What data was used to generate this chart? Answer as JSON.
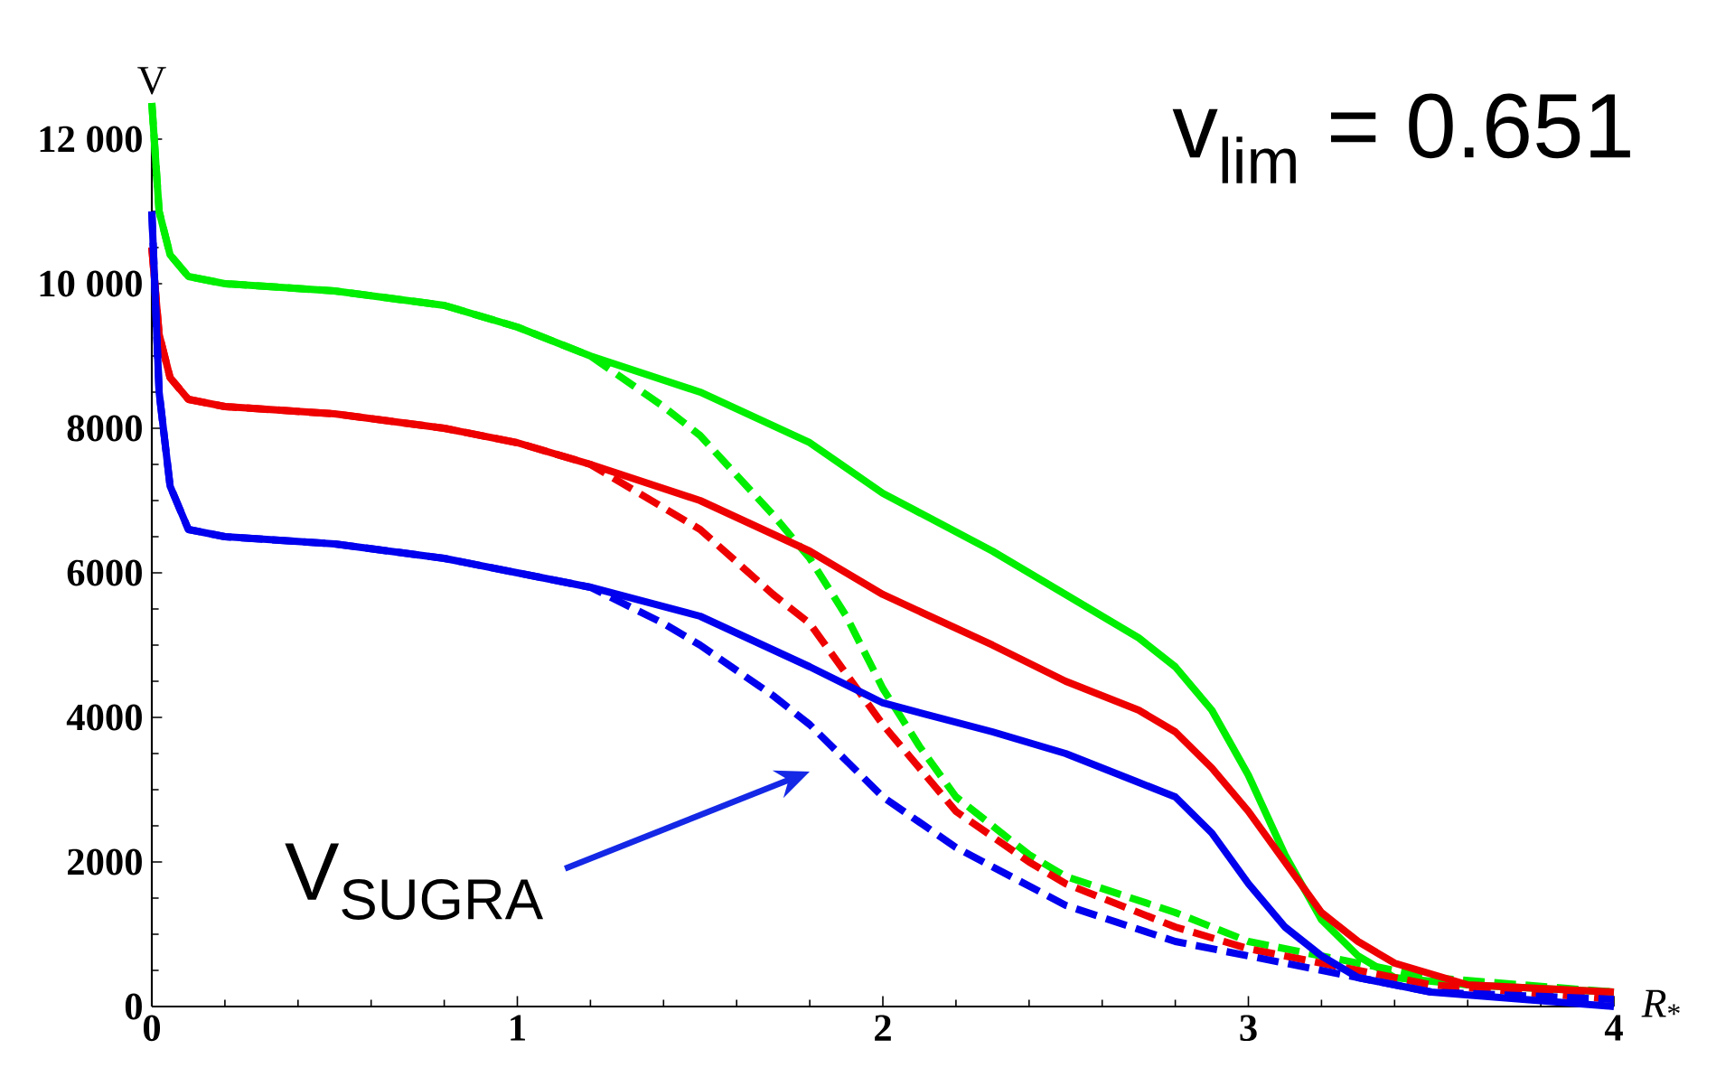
{
  "chart_data": {
    "type": "line",
    "xlabel": "*R*$_{*}$",
    "ylabel": "V",
    "xlim": [
      0,
      4
    ],
    "ylim": [
      0,
      12500
    ],
    "xticks": [
      0,
      1,
      2,
      3,
      4
    ],
    "yticks": [
      0,
      2000,
      4000,
      6000,
      8000,
      {
        "value": 10000,
        "label": "10 000"
      },
      {
        "value": 12000,
        "label": "12 000"
      }
    ],
    "grid": false,
    "marker": "none",
    "series": [
      {
        "color": "#00ee00",
        "line_style": "solid",
        "x": [
          0,
          0.02,
          0.05,
          0.1,
          0.2,
          0.5,
          0.8,
          1,
          1.2,
          1.5,
          1.8,
          2,
          2.3,
          2.5,
          2.7,
          2.8,
          2.9,
          3,
          3.1,
          3.2,
          3.3,
          3.4,
          3.6,
          4
        ],
        "values": [
          12500,
          11000,
          10400,
          10100,
          10000,
          9900,
          9700,
          9400,
          9000,
          8500,
          7800,
          7100,
          6300,
          5700,
          5100,
          4700,
          4100,
          3200,
          2100,
          1200,
          700,
          400,
          300,
          200
        ]
      },
      {
        "color": "#00ee00",
        "line_style": "dashed",
        "x": [
          0,
          0.02,
          0.05,
          0.1,
          0.2,
          0.5,
          0.8,
          1,
          1.2,
          1.4,
          1.5,
          1.7,
          1.8,
          1.9,
          2,
          2.1,
          2.2,
          2.4,
          2.5,
          2.8,
          3,
          3.5,
          4
        ],
        "values": [
          12500,
          11000,
          10400,
          10100,
          10000,
          9900,
          9700,
          9400,
          9000,
          8300,
          7900,
          6800,
          6200,
          5400,
          4400,
          3600,
          2900,
          2100,
          1800,
          1300,
          900,
          400,
          200
        ]
      },
      {
        "color": "#ee0000",
        "line_style": "solid",
        "x": [
          0,
          0.02,
          0.05,
          0.1,
          0.2,
          0.5,
          0.8,
          1,
          1.2,
          1.5,
          1.8,
          2,
          2.3,
          2.5,
          2.7,
          2.8,
          2.9,
          3,
          3.1,
          3.2,
          3.3,
          3.4,
          3.6,
          4
        ],
        "values": [
          10500,
          9300,
          8700,
          8400,
          8300,
          8200,
          8000,
          7800,
          7500,
          7000,
          6300,
          5700,
          5000,
          4500,
          4100,
          3800,
          3300,
          2700,
          2000,
          1300,
          900,
          600,
          300,
          200
        ]
      },
      {
        "color": "#ee0000",
        "line_style": "dashed",
        "x": [
          0,
          0.02,
          0.05,
          0.1,
          0.2,
          0.5,
          0.8,
          1,
          1.2,
          1.4,
          1.5,
          1.7,
          1.8,
          1.9,
          2,
          2.1,
          2.2,
          2.4,
          2.5,
          2.8,
          3,
          3.5,
          4
        ],
        "values": [
          10500,
          9300,
          8700,
          8400,
          8300,
          8200,
          8000,
          7800,
          7500,
          6900,
          6600,
          5700,
          5300,
          4600,
          3900,
          3300,
          2700,
          2000,
          1700,
          1100,
          800,
          300,
          100
        ]
      },
      {
        "color": "#0000ee",
        "line_style": "solid",
        "x": [
          0,
          0.02,
          0.05,
          0.1,
          0.2,
          0.5,
          0.8,
          1,
          1.2,
          1.5,
          1.8,
          2,
          2.3,
          2.5,
          2.7,
          2.8,
          2.9,
          3,
          3.1,
          3.2,
          3.3,
          3.5,
          4
        ],
        "values": [
          11000,
          8500,
          7200,
          6600,
          6500,
          6400,
          6200,
          6000,
          5800,
          5400,
          4700,
          4200,
          3800,
          3500,
          3100,
          2900,
          2400,
          1700,
          1100,
          700,
          400,
          200,
          0
        ]
      },
      {
        "color": "#0000ee",
        "line_style": "dashed",
        "x": [
          0,
          0.02,
          0.05,
          0.1,
          0.2,
          0.5,
          0.8,
          1,
          1.2,
          1.4,
          1.5,
          1.7,
          1.8,
          1.9,
          2,
          2.2,
          2.5,
          2.8,
          3,
          3.5,
          4
        ],
        "values": [
          11000,
          8500,
          7200,
          6600,
          6500,
          6400,
          6200,
          6000,
          5800,
          5300,
          5000,
          4300,
          3900,
          3400,
          2900,
          2200,
          1400,
          900,
          700,
          200,
          100
        ]
      }
    ],
    "annotations": [
      "v$_{lim}$ = 0.651",
      "V$_{SUGRA}$"
    ]
  }
}
